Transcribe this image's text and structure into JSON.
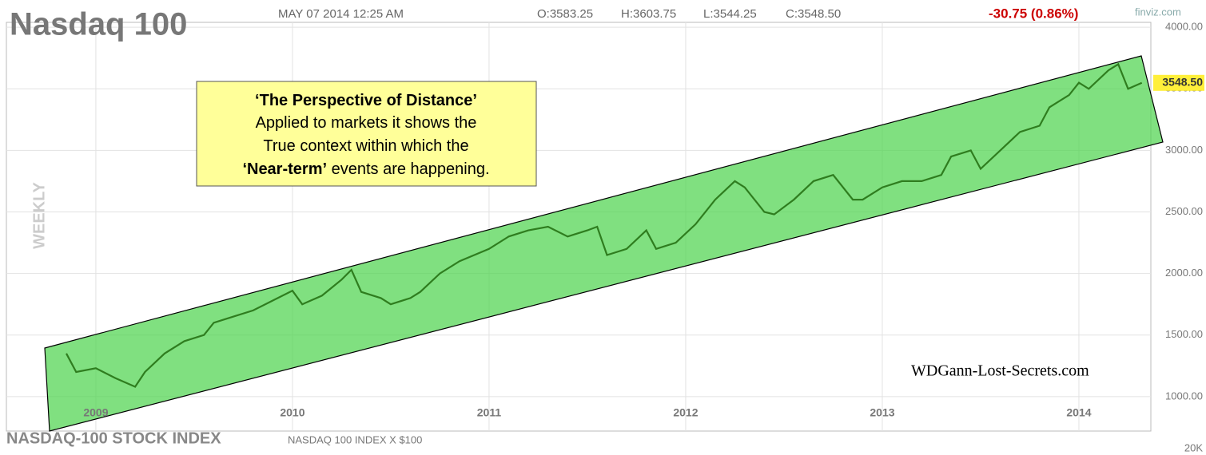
{
  "chart_data": {
    "type": "line",
    "title": "Nasdaq 100",
    "datetime": "MAY 07 2014 12:25 AM",
    "ohlc": [
      "O:3583.25",
      "H:3603.75",
      "L:3544.25",
      "C:3548.50"
    ],
    "change": "-30.75 (0.86%)",
    "source": "finviz.com",
    "period": "WEEKLY",
    "subtitle": "NASDAQ-100 STOCK INDEX",
    "index_note": "NASDAQ 100 INDEX X $100",
    "volume_label": "20K",
    "watermark": "WDGann-Lost-Secrets.com",
    "annotation": [
      [
        {
          "text": "‘The Perspective of Distance’",
          "bold": true
        }
      ],
      [
        {
          "text": "Applied to markets it shows the",
          "bold": false
        }
      ],
      [
        {
          "text": "True context within which the",
          "bold": false
        }
      ],
      [
        {
          "text": "‘Near-term’",
          "bold": true
        },
        {
          "text": " events are happening.",
          "bold": false
        }
      ]
    ],
    "last_price": {
      "value": 3548.5,
      "label": "3548.50"
    },
    "color": "#2f7d1f",
    "grid": true,
    "x": [
      2008.85,
      2008.9,
      2009.0,
      2009.1,
      2009.2,
      2009.25,
      2009.35,
      2009.45,
      2009.55,
      2009.6,
      2009.7,
      2009.8,
      2009.9,
      2010.0,
      2010.05,
      2010.15,
      2010.25,
      2010.3,
      2010.35,
      2010.45,
      2010.5,
      2010.6,
      2010.65,
      2010.75,
      2010.85,
      2011.0,
      2011.1,
      2011.2,
      2011.3,
      2011.4,
      2011.5,
      2011.55,
      2011.6,
      2011.7,
      2011.8,
      2011.85,
      2011.95,
      2012.05,
      2012.15,
      2012.25,
      2012.3,
      2012.4,
      2012.45,
      2012.55,
      2012.65,
      2012.75,
      2012.85,
      2012.9,
      2013.0,
      2013.1,
      2013.2,
      2013.3,
      2013.35,
      2013.45,
      2013.5,
      2013.6,
      2013.7,
      2013.8,
      2013.85,
      2013.95,
      2014.0,
      2014.05,
      2014.15,
      2014.2,
      2014.25,
      2014.32
    ],
    "values": [
      1350,
      1200,
      1230,
      1150,
      1080,
      1200,
      1350,
      1450,
      1500,
      1600,
      1650,
      1700,
      1780,
      1860,
      1750,
      1820,
      1950,
      2030,
      1850,
      1800,
      1750,
      1800,
      1850,
      2000,
      2100,
      2200,
      2300,
      2350,
      2380,
      2300,
      2350,
      2380,
      2150,
      2200,
      2350,
      2200,
      2250,
      2400,
      2600,
      2750,
      2700,
      2500,
      2480,
      2600,
      2750,
      2800,
      2600,
      2600,
      2700,
      2750,
      2750,
      2800,
      2950,
      3000,
      2850,
      3000,
      3150,
      3200,
      3350,
      3450,
      3550,
      3500,
      3650,
      3700,
      3500,
      3548.5
    ],
    "xlim": [
      2008.545,
      2014.366
    ],
    "xticks": [
      2009,
      2010,
      2011,
      2012,
      2013,
      2014
    ],
    "ylim": [
      720,
      4040
    ],
    "yticks": [
      {
        "value": 1000,
        "label": "1000.00"
      },
      {
        "value": 1500,
        "label": "1500.00"
      },
      {
        "value": 2000,
        "label": "2000.00"
      },
      {
        "value": 2500,
        "label": "2500.00"
      },
      {
        "value": 3000,
        "label": "3000.00"
      },
      {
        "value": 3500,
        "label": "3500.00"
      },
      {
        "value": 4000,
        "label": "4000.00"
      }
    ]
  }
}
